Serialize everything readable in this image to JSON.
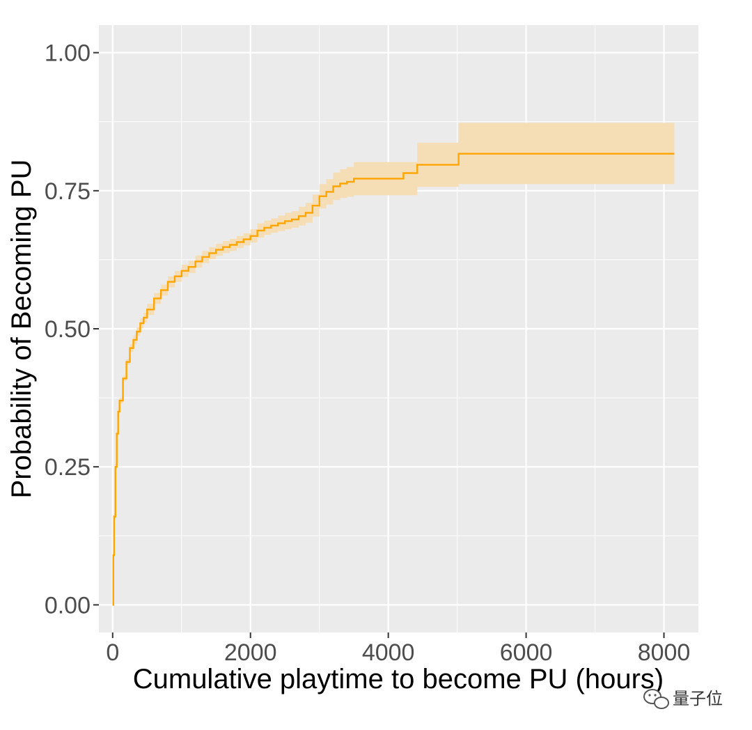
{
  "chart_data": {
    "type": "line",
    "title": "",
    "xlabel": "Cumulative playtime to become PU (hours)",
    "ylabel": "Probability of Becoming PU",
    "xlim": [
      -200,
      8500
    ],
    "ylim": [
      -0.05,
      1.05
    ],
    "x_ticks": [
      0,
      2000,
      4000,
      6000,
      8000
    ],
    "x_tick_labels": [
      "0",
      "2000",
      "4000",
      "6000",
      "8000"
    ],
    "y_ticks": [
      0,
      0.25,
      0.5,
      0.75,
      1.0
    ],
    "y_tick_labels": [
      "0.00",
      "0.25",
      "0.50",
      "0.75",
      "1.00"
    ],
    "grid": true,
    "legend": "none",
    "colors": {
      "panel": "#ebebeb",
      "grid": "#ffffff",
      "line": "#ffa500",
      "band": "#f5ddb5"
    },
    "series": [
      {
        "step": true,
        "x": [
          0,
          10,
          20,
          40,
          60,
          80,
          100,
          150,
          200,
          250,
          300,
          350,
          400,
          450,
          500,
          600,
          700,
          800,
          900,
          1000,
          1100,
          1200,
          1300,
          1400,
          1500,
          1600,
          1700,
          1800,
          1900,
          2000,
          2100,
          2200,
          2300,
          2400,
          2500,
          2600,
          2700,
          2800,
          2900,
          3000,
          3100,
          3200,
          3300,
          3400,
          3500,
          4220,
          4420,
          5020,
          8150
        ],
        "y": [
          0.0,
          0.09,
          0.16,
          0.25,
          0.31,
          0.35,
          0.37,
          0.41,
          0.44,
          0.465,
          0.48,
          0.495,
          0.51,
          0.52,
          0.535,
          0.555,
          0.57,
          0.585,
          0.595,
          0.605,
          0.612,
          0.622,
          0.63,
          0.637,
          0.643,
          0.648,
          0.652,
          0.657,
          0.662,
          0.668,
          0.678,
          0.683,
          0.687,
          0.691,
          0.695,
          0.698,
          0.704,
          0.71,
          0.723,
          0.74,
          0.748,
          0.758,
          0.763,
          0.766,
          0.772,
          0.782,
          0.797,
          0.817,
          0.817
        ],
        "lower": [
          0.0,
          0.085,
          0.155,
          0.245,
          0.305,
          0.345,
          0.365,
          0.405,
          0.435,
          0.458,
          0.472,
          0.487,
          0.501,
          0.511,
          0.525,
          0.545,
          0.56,
          0.575,
          0.585,
          0.594,
          0.601,
          0.611,
          0.619,
          0.626,
          0.632,
          0.637,
          0.641,
          0.646,
          0.651,
          0.656,
          0.665,
          0.67,
          0.674,
          0.677,
          0.68,
          0.683,
          0.687,
          0.692,
          0.703,
          0.718,
          0.725,
          0.733,
          0.737,
          0.739,
          0.742,
          0.742,
          0.757,
          0.762,
          0.762
        ],
        "upper": [
          0.0,
          0.095,
          0.165,
          0.255,
          0.315,
          0.355,
          0.375,
          0.415,
          0.445,
          0.472,
          0.488,
          0.503,
          0.519,
          0.529,
          0.545,
          0.565,
          0.58,
          0.595,
          0.605,
          0.616,
          0.623,
          0.633,
          0.641,
          0.648,
          0.654,
          0.659,
          0.663,
          0.668,
          0.673,
          0.68,
          0.691,
          0.696,
          0.7,
          0.705,
          0.71,
          0.713,
          0.721,
          0.728,
          0.743,
          0.762,
          0.771,
          0.783,
          0.789,
          0.793,
          0.802,
          0.802,
          0.837,
          0.873,
          0.873
        ]
      }
    ]
  },
  "watermark": {
    "text": "量子位",
    "icon": "wechat-icon"
  }
}
